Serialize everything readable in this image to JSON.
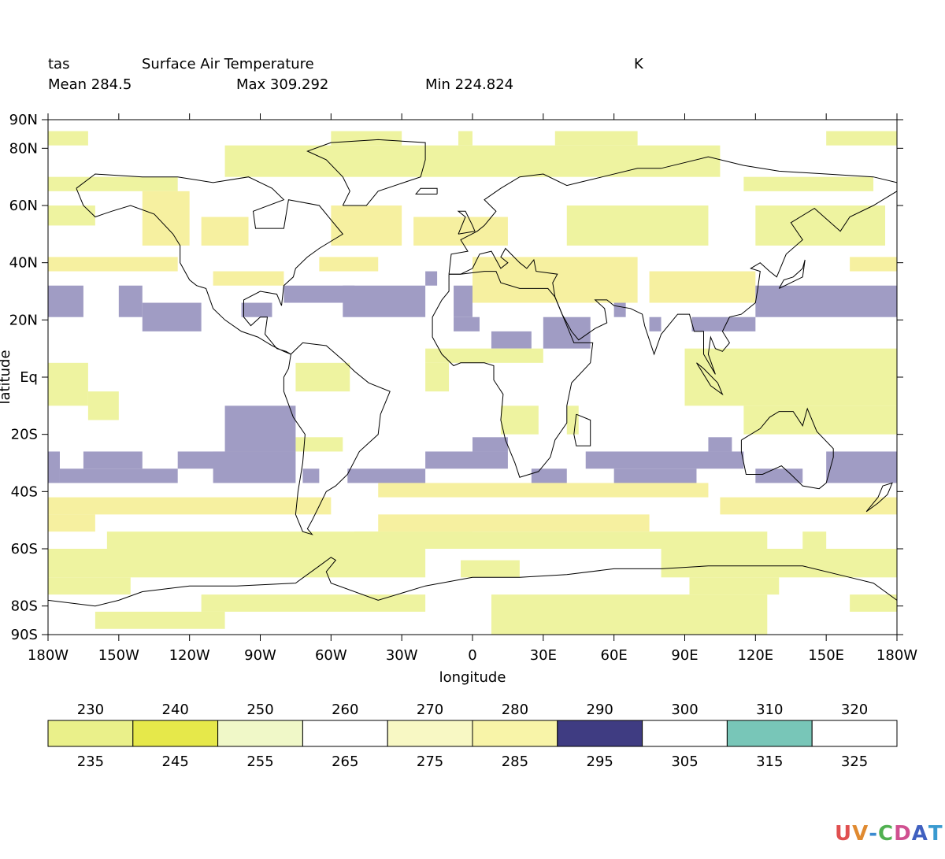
{
  "header": {
    "variable": "tas",
    "long_name": "Surface Air Temperature",
    "units": "K",
    "mean_label": "Mean 284.5",
    "max_label": "Max 309.292",
    "min_label": "Min 224.824"
  },
  "logo": {
    "text": "UV-CDAT"
  },
  "chart_data": {
    "type": "heatmap",
    "projection": "cylindrical (lon/lat)",
    "xlabel": "longitude",
    "ylabel": "latitude",
    "xlim": [
      -180,
      180
    ],
    "ylim": [
      -90,
      90
    ],
    "x_ticks": [
      {
        "value": -180,
        "label": "180W"
      },
      {
        "value": -150,
        "label": "150W"
      },
      {
        "value": -120,
        "label": "120W"
      },
      {
        "value": -90,
        "label": "90W"
      },
      {
        "value": -60,
        "label": "60W"
      },
      {
        "value": -30,
        "label": "30W"
      },
      {
        "value": 0,
        "label": "0"
      },
      {
        "value": 30,
        "label": "30E"
      },
      {
        "value": 60,
        "label": "60E"
      },
      {
        "value": 90,
        "label": "90E"
      },
      {
        "value": 120,
        "label": "120E"
      },
      {
        "value": 150,
        "label": "150E"
      },
      {
        "value": 180,
        "label": "180W"
      }
    ],
    "y_ticks": [
      {
        "value": 90,
        "label": "90N"
      },
      {
        "value": 80,
        "label": "80N"
      },
      {
        "value": 60,
        "label": "60N"
      },
      {
        "value": 40,
        "label": "40N"
      },
      {
        "value": 20,
        "label": "20N"
      },
      {
        "value": 0,
        "label": "Eq"
      },
      {
        "value": -20,
        "label": "20S"
      },
      {
        "value": -40,
        "label": "40S"
      },
      {
        "value": -60,
        "label": "60S"
      },
      {
        "value": -80,
        "label": "80S"
      },
      {
        "value": -90,
        "label": "90S"
      }
    ],
    "colorbar": {
      "upper_labels": [
        "230",
        "240",
        "250",
        "260",
        "270",
        "280",
        "290",
        "300",
        "310",
        "320"
      ],
      "lower_labels": [
        "235",
        "245",
        "255",
        "265",
        "275",
        "285",
        "295",
        "305",
        "315",
        "325"
      ],
      "colors": [
        "#eaf08a",
        "#e6e84a",
        "#f0f8c8",
        "#ffffff",
        "#f8f8c4",
        "#f8f4a8",
        "#3f3c82",
        "#ffffff",
        "#78c6b8",
        "#ffffff"
      ]
    },
    "map_colors": {
      "green_yellow": "#eef3a0",
      "pale_yellow": "#f6f0a0",
      "warm": "#a09cc4",
      "blank": "#ffffff"
    },
    "cells": [
      {
        "lon": [
          -180,
          -163
        ],
        "lat": [
          81,
          86
        ],
        "c": "green_yellow"
      },
      {
        "lon": [
          -60,
          -30
        ],
        "lat": [
          81,
          86
        ],
        "c": "green_yellow"
      },
      {
        "lon": [
          -6,
          0
        ],
        "lat": [
          81,
          86
        ],
        "c": "green_yellow"
      },
      {
        "lon": [
          35,
          70
        ],
        "lat": [
          81,
          86
        ],
        "c": "green_yellow"
      },
      {
        "lon": [
          150,
          180
        ],
        "lat": [
          81,
          86
        ],
        "c": "green_yellow"
      },
      {
        "lon": [
          -105,
          105
        ],
        "lat": [
          70,
          81
        ],
        "c": "green_yellow"
      },
      {
        "lon": [
          115,
          170
        ],
        "lat": [
          65,
          70
        ],
        "c": "green_yellow"
      },
      {
        "lon": [
          -180,
          -125
        ],
        "lat": [
          65,
          70
        ],
        "c": "green_yellow"
      },
      {
        "lon": [
          -180,
          -160
        ],
        "lat": [
          53,
          60
        ],
        "c": "green_yellow"
      },
      {
        "lon": [
          -140,
          -120
        ],
        "lat": [
          46,
          65
        ],
        "c": "pale_yellow"
      },
      {
        "lon": [
          -115,
          -95
        ],
        "lat": [
          46,
          56
        ],
        "c": "pale_yellow"
      },
      {
        "lon": [
          -60,
          -30
        ],
        "lat": [
          46,
          60
        ],
        "c": "pale_yellow"
      },
      {
        "lon": [
          -25,
          15
        ],
        "lat": [
          46,
          56
        ],
        "c": "pale_yellow"
      },
      {
        "lon": [
          40,
          100
        ],
        "lat": [
          46,
          60
        ],
        "c": "green_yellow"
      },
      {
        "lon": [
          120,
          175
        ],
        "lat": [
          46,
          60
        ],
        "c": "green_yellow"
      },
      {
        "lon": [
          -180,
          -125
        ],
        "lat": [
          37,
          42
        ],
        "c": "pale_yellow"
      },
      {
        "lon": [
          -110,
          -80
        ],
        "lat": [
          32,
          37
        ],
        "c": "pale_yellow"
      },
      {
        "lon": [
          -65,
          -40
        ],
        "lat": [
          37,
          42
        ],
        "c": "pale_yellow"
      },
      {
        "lon": [
          0,
          70
        ],
        "lat": [
          26,
          42
        ],
        "c": "pale_yellow"
      },
      {
        "lon": [
          75,
          120
        ],
        "lat": [
          26,
          37
        ],
        "c": "pale_yellow"
      },
      {
        "lon": [
          160,
          180
        ],
        "lat": [
          37,
          42
        ],
        "c": "pale_yellow"
      },
      {
        "lon": [
          -180,
          -165
        ],
        "lat": [
          21,
          32
        ],
        "c": "warm"
      },
      {
        "lon": [
          -150,
          -140
        ],
        "lat": [
          21,
          32
        ],
        "c": "warm"
      },
      {
        "lon": [
          -140,
          -115
        ],
        "lat": [
          16,
          26
        ],
        "c": "warm"
      },
      {
        "lon": [
          -98,
          -85
        ],
        "lat": [
          21,
          26
        ],
        "c": "warm"
      },
      {
        "lon": [
          -80,
          -50
        ],
        "lat": [
          26,
          32
        ],
        "c": "warm"
      },
      {
        "lon": [
          -55,
          -20
        ],
        "lat": [
          21,
          32
        ],
        "c": "warm"
      },
      {
        "lon": [
          -20,
          -15
        ],
        "lat": [
          32,
          37
        ],
        "c": "warm"
      },
      {
        "lon": [
          -8,
          0
        ],
        "lat": [
          21,
          32
        ],
        "c": "warm"
      },
      {
        "lon": [
          -8,
          3
        ],
        "lat": [
          16,
          21
        ],
        "c": "warm"
      },
      {
        "lon": [
          8,
          25
        ],
        "lat": [
          10,
          16
        ],
        "c": "warm"
      },
      {
        "lon": [
          30,
          50
        ],
        "lat": [
          10,
          21
        ],
        "c": "warm"
      },
      {
        "lon": [
          60,
          65
        ],
        "lat": [
          21,
          26
        ],
        "c": "warm"
      },
      {
        "lon": [
          75,
          80
        ],
        "lat": [
          16,
          21
        ],
        "c": "warm"
      },
      {
        "lon": [
          93,
          120
        ],
        "lat": [
          16,
          21
        ],
        "c": "warm"
      },
      {
        "lon": [
          120,
          180
        ],
        "lat": [
          21,
          32
        ],
        "c": "warm"
      },
      {
        "lon": [
          -180,
          -163
        ],
        "lat": [
          -10,
          5
        ],
        "c": "green_yellow"
      },
      {
        "lon": [
          -163,
          -150
        ],
        "lat": [
          -15,
          -5
        ],
        "c": "green_yellow"
      },
      {
        "lon": [
          -75,
          -52
        ],
        "lat": [
          -5,
          5
        ],
        "c": "green_yellow"
      },
      {
        "lon": [
          -20,
          30
        ],
        "lat": [
          5,
          10
        ],
        "c": "green_yellow"
      },
      {
        "lon": [
          -20,
          -10
        ],
        "lat": [
          -5,
          5
        ],
        "c": "green_yellow"
      },
      {
        "lon": [
          90,
          180
        ],
        "lat": [
          -10,
          10
        ],
        "c": "green_yellow"
      },
      {
        "lon": [
          115,
          180
        ],
        "lat": [
          -20,
          -10
        ],
        "c": "green_yellow"
      },
      {
        "lon": [
          12,
          28
        ],
        "lat": [
          -20,
          -10
        ],
        "c": "green_yellow"
      },
      {
        "lon": [
          40,
          45
        ],
        "lat": [
          -20,
          -10
        ],
        "c": "green_yellow"
      },
      {
        "lon": [
          -75,
          -55
        ],
        "lat": [
          -26,
          -21
        ],
        "c": "green_yellow"
      },
      {
        "lon": [
          -105,
          -75
        ],
        "lat": [
          -26,
          -10
        ],
        "c": "warm"
      },
      {
        "lon": [
          -125,
          -90
        ],
        "lat": [
          -32,
          -26
        ],
        "c": "warm"
      },
      {
        "lon": [
          -180,
          -175
        ],
        "lat": [
          -37,
          -26
        ],
        "c": "warm"
      },
      {
        "lon": [
          -175,
          -125
        ],
        "lat": [
          -37,
          -32
        ],
        "c": "warm"
      },
      {
        "lon": [
          -165,
          -140
        ],
        "lat": [
          -32,
          -26
        ],
        "c": "warm"
      },
      {
        "lon": [
          -110,
          -75
        ],
        "lat": [
          -37,
          -26
        ],
        "c": "warm"
      },
      {
        "lon": [
          -72,
          -65
        ],
        "lat": [
          -37,
          -32
        ],
        "c": "warm"
      },
      {
        "lon": [
          -53,
          -20
        ],
        "lat": [
          -37,
          -32
        ],
        "c": "warm"
      },
      {
        "lon": [
          -20,
          15
        ],
        "lat": [
          -32,
          -26
        ],
        "c": "warm"
      },
      {
        "lon": [
          0,
          15
        ],
        "lat": [
          -26,
          -21
        ],
        "c": "warm"
      },
      {
        "lon": [
          25,
          40
        ],
        "lat": [
          -37,
          -32
        ],
        "c": "warm"
      },
      {
        "lon": [
          48,
          115
        ],
        "lat": [
          -32,
          -26
        ],
        "c": "warm"
      },
      {
        "lon": [
          60,
          95
        ],
        "lat": [
          -37,
          -32
        ],
        "c": "warm"
      },
      {
        "lon": [
          100,
          110
        ],
        "lat": [
          -26,
          -21
        ],
        "c": "warm"
      },
      {
        "lon": [
          120,
          140
        ],
        "lat": [
          -37,
          -32
        ],
        "c": "warm"
      },
      {
        "lon": [
          150,
          180
        ],
        "lat": [
          -37,
          -26
        ],
        "c": "warm"
      },
      {
        "lon": [
          -40,
          100
        ],
        "lat": [
          -42,
          -37
        ],
        "c": "pale_yellow"
      },
      {
        "lon": [
          -180,
          -60
        ],
        "lat": [
          -48,
          -42
        ],
        "c": "pale_yellow"
      },
      {
        "lon": [
          -180,
          -160
        ],
        "lat": [
          -54,
          -48
        ],
        "c": "pale_yellow"
      },
      {
        "lon": [
          105,
          180
        ],
        "lat": [
          -48,
          -42
        ],
        "c": "pale_yellow"
      },
      {
        "lon": [
          -40,
          75
        ],
        "lat": [
          -54,
          -48
        ],
        "c": "pale_yellow"
      },
      {
        "lon": [
          -155,
          0
        ],
        "lat": [
          -60,
          -54
        ],
        "c": "green_yellow"
      },
      {
        "lon": [
          -50,
          125
        ],
        "lat": [
          -60,
          -54
        ],
        "c": "green_yellow"
      },
      {
        "lon": [
          140,
          150
        ],
        "lat": [
          -60,
          -54
        ],
        "c": "green_yellow"
      },
      {
        "lon": [
          -180,
          -20
        ],
        "lat": [
          -70,
          -60
        ],
        "c": "green_yellow"
      },
      {
        "lon": [
          -5,
          20
        ],
        "lat": [
          -70,
          -64
        ],
        "c": "green_yellow"
      },
      {
        "lon": [
          80,
          180
        ],
        "lat": [
          -70,
          -60
        ],
        "c": "green_yellow"
      },
      {
        "lon": [
          -180,
          -145
        ],
        "lat": [
          -76,
          -70
        ],
        "c": "green_yellow"
      },
      {
        "lon": [
          -115,
          -20
        ],
        "lat": [
          -82,
          -76
        ],
        "c": "green_yellow"
      },
      {
        "lon": [
          8,
          125
        ],
        "lat": [
          -90,
          -76
        ],
        "c": "green_yellow"
      },
      {
        "lon": [
          92,
          130
        ],
        "lat": [
          -76,
          -70
        ],
        "c": "green_yellow"
      },
      {
        "lon": [
          160,
          180
        ],
        "lat": [
          -82,
          -76
        ],
        "c": "green_yellow"
      },
      {
        "lon": [
          -160,
          -105
        ],
        "lat": [
          -88,
          -82
        ],
        "c": "green_yellow"
      }
    ]
  }
}
